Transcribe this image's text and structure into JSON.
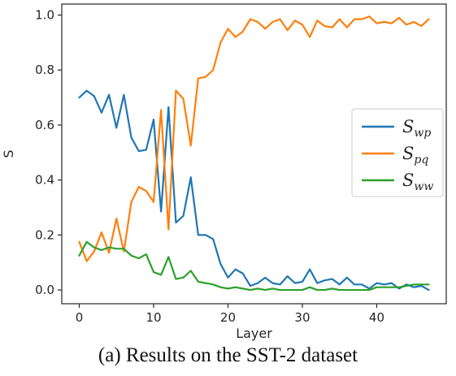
{
  "caption": "(a) Results on the SST-2 dataset",
  "chart_data": {
    "type": "line",
    "title": "",
    "xlabel": "Layer",
    "ylabel": "S",
    "xlim": [
      -2.35,
      49.35
    ],
    "ylim": [
      -0.05,
      1.04
    ],
    "xticks": [
      0,
      10,
      20,
      30,
      40
    ],
    "yticks": [
      0.0,
      0.2,
      0.4,
      0.6,
      0.8,
      1.0
    ],
    "ytick_labels": [
      "0.0",
      "0.2",
      "0.4",
      "0.6",
      "0.8",
      "1.0"
    ],
    "grid": false,
    "legend_position": "center-right",
    "x": [
      0,
      1,
      2,
      3,
      4,
      5,
      6,
      7,
      8,
      9,
      10,
      11,
      12,
      13,
      14,
      15,
      16,
      17,
      18,
      19,
      20,
      21,
      22,
      23,
      24,
      25,
      26,
      27,
      28,
      29,
      30,
      31,
      32,
      33,
      34,
      35,
      36,
      37,
      38,
      39,
      40,
      41,
      42,
      43,
      44,
      45,
      46,
      47
    ],
    "series": [
      {
        "name": "S",
        "subscript": "wp",
        "color": "#1f77b4",
        "values": [
          0.7,
          0.725,
          0.705,
          0.645,
          0.71,
          0.59,
          0.71,
          0.555,
          0.505,
          0.51,
          0.62,
          0.285,
          0.665,
          0.245,
          0.27,
          0.41,
          0.2,
          0.2,
          0.185,
          0.095,
          0.045,
          0.075,
          0.06,
          0.015,
          0.025,
          0.045,
          0.025,
          0.02,
          0.05,
          0.025,
          0.03,
          0.075,
          0.025,
          0.035,
          0.04,
          0.02,
          0.045,
          0.02,
          0.02,
          0.005,
          0.025,
          0.02,
          0.025,
          0.005,
          0.02,
          0.01,
          0.015,
          0.0
        ]
      },
      {
        "name": "S",
        "subscript": "pq",
        "color": "#ff7f0e",
        "values": [
          0.175,
          0.105,
          0.14,
          0.21,
          0.135,
          0.26,
          0.14,
          0.32,
          0.375,
          0.36,
          0.32,
          0.655,
          0.22,
          0.725,
          0.695,
          0.525,
          0.77,
          0.775,
          0.8,
          0.9,
          0.95,
          0.92,
          0.94,
          0.985,
          0.975,
          0.95,
          0.975,
          0.985,
          0.945,
          0.98,
          0.965,
          0.92,
          0.98,
          0.96,
          0.955,
          0.985,
          0.955,
          0.985,
          0.985,
          0.995,
          0.97,
          0.975,
          0.97,
          0.99,
          0.965,
          0.975,
          0.96,
          0.985
        ]
      },
      {
        "name": "S",
        "subscript": "ww",
        "color": "#2ca02c",
        "values": [
          0.125,
          0.175,
          0.155,
          0.145,
          0.155,
          0.15,
          0.15,
          0.125,
          0.115,
          0.13,
          0.065,
          0.055,
          0.12,
          0.04,
          0.045,
          0.07,
          0.03,
          0.025,
          0.02,
          0.01,
          0.005,
          0.01,
          0.005,
          0.0,
          0.005,
          0.0,
          0.005,
          0.0,
          0.0,
          0.0,
          0.0,
          0.01,
          0.0,
          0.0,
          0.005,
          0.0,
          0.0,
          0.0,
          0.0,
          0.0,
          0.01,
          0.01,
          0.01,
          0.01,
          0.015,
          0.02,
          0.02,
          0.02
        ]
      }
    ]
  }
}
